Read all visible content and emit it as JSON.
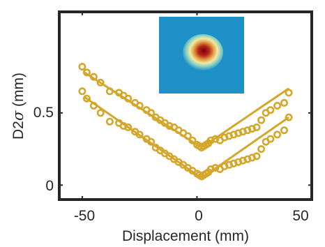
{
  "chart_data": {
    "type": "scatter",
    "title": "",
    "xlabel": "Displacement (mm)",
    "ylabel_main": "D2",
    "ylabel_symbol": "σ",
    "ylabel_unit": " (mm)",
    "xlim": [
      -60,
      50
    ],
    "ylim": [
      -0.1,
      1.2
    ],
    "xticks": [
      -50,
      0,
      50
    ],
    "xtick_labels": [
      "-50",
      "0",
      "50"
    ],
    "yticks": [
      0,
      0.5
    ],
    "ytick_labels": [
      "0",
      "0.5"
    ],
    "grid": false,
    "box": true,
    "color": "#D4A62A",
    "inset": {
      "kind": "heatmap",
      "background": "#1E90C8",
      "description": "beam spot image"
    },
    "series": [
      {
        "x": [
          -50,
          -48,
          -45,
          -42,
          -38,
          -34,
          -32,
          -30,
          -27,
          -25,
          -22,
          -20,
          -18,
          -16,
          -14,
          -12,
          -10,
          -8,
          -6,
          -4,
          -2,
          0,
          1,
          2,
          3,
          4,
          5,
          6,
          8,
          10,
          12,
          14,
          16,
          18,
          20,
          22,
          24,
          26,
          28,
          30,
          32,
          35,
          38,
          40
        ],
        "y": [
          0.82,
          0.78,
          0.75,
          0.71,
          0.65,
          0.64,
          0.62,
          0.6,
          0.57,
          0.55,
          0.52,
          0.5,
          0.47,
          0.45,
          0.43,
          0.41,
          0.4,
          0.38,
          0.36,
          0.34,
          0.31,
          0.28,
          0.27,
          0.26,
          0.27,
          0.28,
          0.29,
          0.31,
          0.32,
          0.31,
          0.33,
          0.34,
          0.35,
          0.36,
          0.37,
          0.38,
          0.39,
          0.4,
          0.45,
          0.5,
          0.52,
          0.55,
          0.57,
          0.64
        ],
        "fit": [
          [
            -49,
            0.78
          ],
          [
            1,
            0.27
          ],
          [
            3,
            0.27
          ],
          [
            40,
            0.67
          ]
        ]
      },
      {
        "x": [
          -50,
          -48,
          -45,
          -42,
          -38,
          -34,
          -32,
          -30,
          -27,
          -25,
          -22,
          -20,
          -18,
          -16,
          -14,
          -12,
          -10,
          -8,
          -6,
          -4,
          -2,
          0,
          1,
          2,
          3,
          4,
          5,
          6,
          8,
          10,
          12,
          14,
          16,
          18,
          20,
          22,
          24,
          26,
          28,
          30,
          32,
          35,
          38,
          40
        ],
        "y": [
          0.65,
          0.6,
          0.55,
          0.5,
          0.44,
          0.43,
          0.41,
          0.4,
          0.37,
          0.35,
          0.32,
          0.3,
          0.26,
          0.24,
          0.22,
          0.2,
          0.18,
          0.16,
          0.14,
          0.12,
          0.1,
          0.08,
          0.07,
          0.06,
          0.07,
          0.08,
          0.09,
          0.11,
          0.12,
          0.11,
          0.13,
          0.14,
          0.15,
          0.16,
          0.17,
          0.18,
          0.19,
          0.2,
          0.25,
          0.3,
          0.32,
          0.35,
          0.38,
          0.47
        ],
        "fit": [
          [
            -49,
            0.61
          ],
          [
            1,
            0.06
          ],
          [
            3,
            0.06
          ],
          [
            40,
            0.47
          ]
        ]
      }
    ]
  }
}
